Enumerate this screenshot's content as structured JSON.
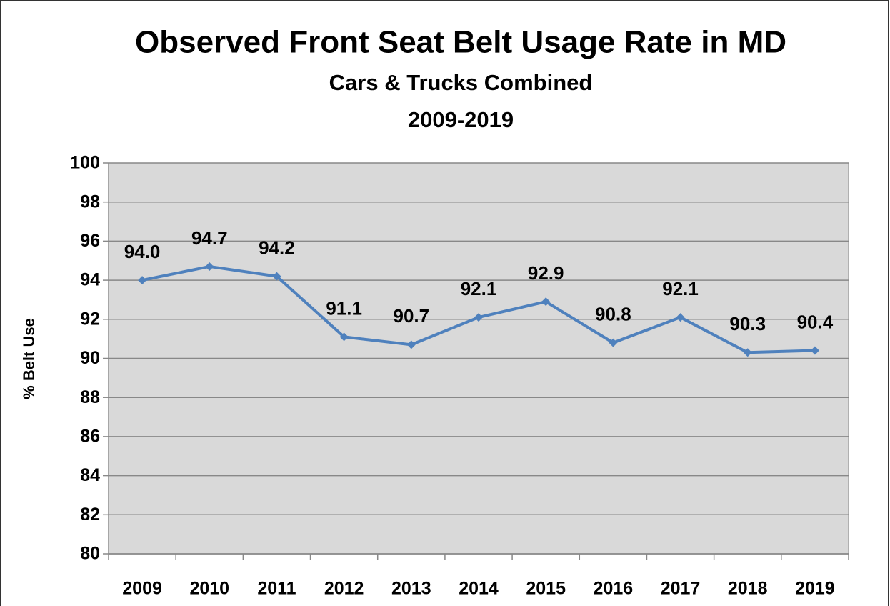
{
  "chart_data": {
    "type": "line",
    "title": "Observed Front Seat Belt Usage Rate in MD",
    "subtitle": [
      "Cars & Trucks Combined",
      "2009-2019"
    ],
    "y_label": "% Belt Use",
    "categories": [
      "2009",
      "2010",
      "2011",
      "2012",
      "2013",
      "2014",
      "2015",
      "2016",
      "2017",
      "2018",
      "2019"
    ],
    "series": [
      {
        "name": "% Belt Use",
        "color": "#4f81bd",
        "values": [
          94.0,
          94.7,
          94.2,
          91.1,
          90.7,
          92.1,
          92.9,
          90.8,
          92.1,
          90.3,
          90.4
        ],
        "value_labels": [
          "94.0",
          "94.7",
          "94.2",
          "91.1",
          "90.7",
          "92.1",
          "92.9",
          "90.8",
          "92.1",
          "90.3",
          "90.4"
        ]
      }
    ],
    "ylim": [
      80,
      100
    ],
    "yticks": [
      80,
      82,
      84,
      86,
      88,
      90,
      92,
      94,
      96,
      98,
      100
    ],
    "grid": true,
    "plot_background": "#d9d9d9"
  }
}
